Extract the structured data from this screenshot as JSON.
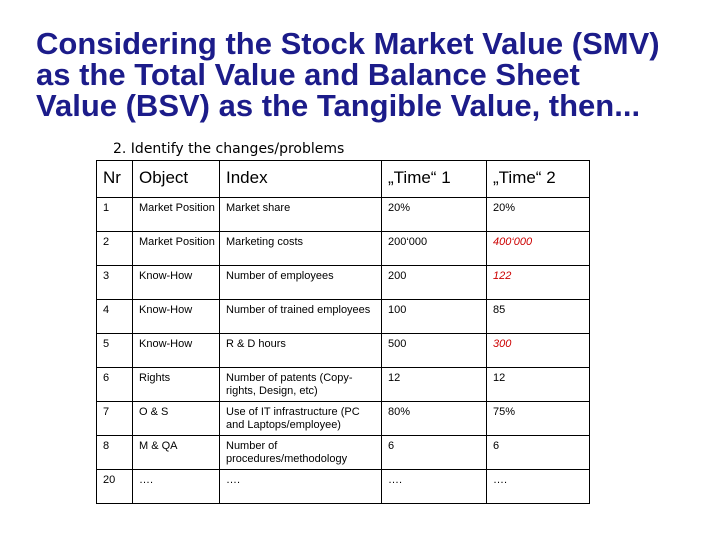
{
  "slide": {
    "title_lines": [
      "Considering the Stock Market Value (SMV)",
      "as the Total Value and Balance Sheet",
      "Value (BSV) as the Tangible Value, then..."
    ],
    "subtitle": "2. Identify the changes/problems",
    "colors": {
      "title": "#1c1c8a",
      "highlight": "#cc0000"
    }
  },
  "table": {
    "headers": [
      "Nr",
      "Object",
      "Index",
      "„Time“ 1",
      "„Time“ 2"
    ],
    "rows": [
      [
        "1",
        "Market Position",
        "Market share",
        "20%",
        "20%"
      ],
      [
        "2",
        "Market Position",
        "Marketing costs",
        "200‘000",
        "400‘000"
      ],
      [
        "3",
        "Know-How",
        "Number of employees",
        "200",
        "122"
      ],
      [
        "4",
        "Know-How",
        "Number of trained employees",
        "100",
        "85"
      ],
      [
        "5",
        "Know-How",
        "R & D hours",
        "500",
        "300"
      ],
      [
        "6",
        "Rights",
        "Number of patents (Copy-rights, Design, etc)",
        "12",
        "12"
      ],
      [
        "7",
        "O & S",
        "Use of IT infrastructure (PC and Laptops/employee)",
        "80%",
        "75%"
      ],
      [
        "8",
        "M & QA",
        "Number of procedures/methodology",
        "6",
        "6"
      ],
      [
        "20",
        "….",
        "….",
        "….",
        "…."
      ]
    ],
    "highlighted_time2_rows": [
      1,
      2,
      4
    ]
  }
}
